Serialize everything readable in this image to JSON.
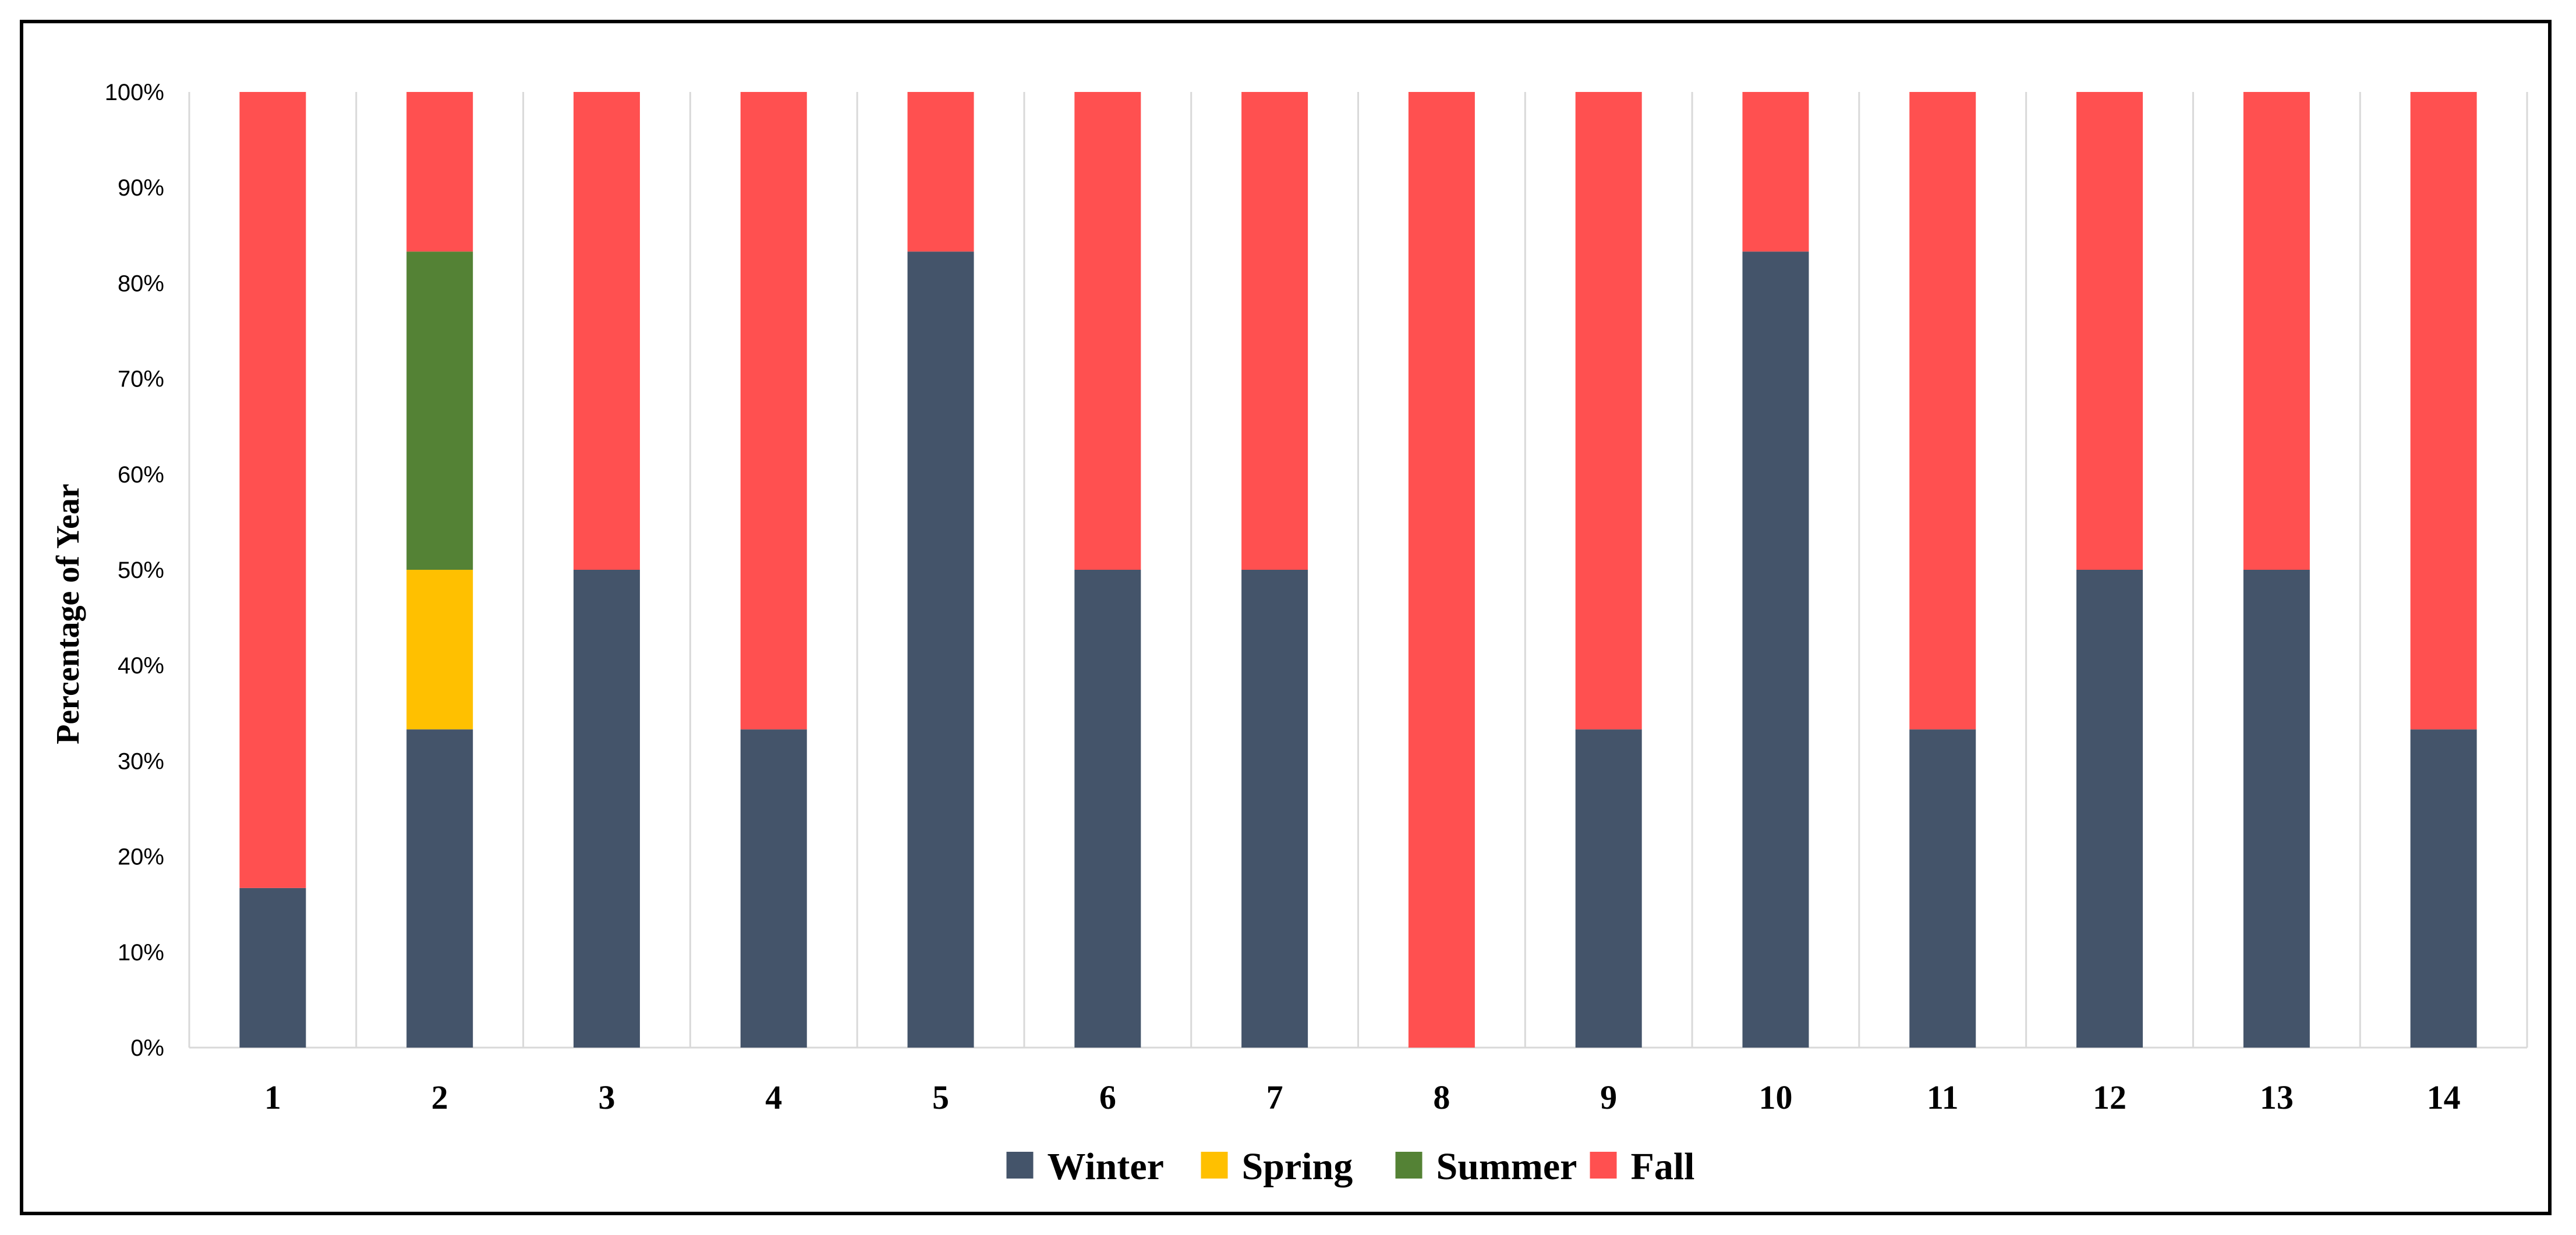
{
  "chart_data": {
    "type": "bar",
    "stacked": true,
    "percent": true,
    "title": "",
    "xlabel": "",
    "ylabel": "Percentage of Year",
    "ylim": [
      0,
      100
    ],
    "y_ticks": [
      "0%",
      "10%",
      "20%",
      "30%",
      "40%",
      "50%",
      "60%",
      "70%",
      "80%",
      "90%",
      "100%"
    ],
    "categories": [
      "1",
      "2",
      "3",
      "4",
      "5",
      "6",
      "7",
      "8",
      "9",
      "10",
      "11",
      "12",
      "13",
      "14"
    ],
    "series": [
      {
        "name": "Winter",
        "color": "#44546A",
        "values": [
          16.7,
          33.3,
          50,
          33.3,
          83.3,
          50,
          50,
          0,
          33.3,
          83.3,
          33.3,
          50,
          50,
          33.3
        ]
      },
      {
        "name": "Spring",
        "color": "#FFC000",
        "values": [
          0,
          16.7,
          0,
          0,
          0,
          0,
          0,
          0,
          0,
          0,
          0,
          0,
          0,
          0
        ]
      },
      {
        "name": "Summer",
        "color": "#548235",
        "values": [
          0,
          33.3,
          0,
          0,
          0,
          0,
          0,
          0,
          0,
          0,
          0,
          0,
          0,
          0
        ]
      },
      {
        "name": "Fall",
        "color": "#FF5050",
        "values": [
          83.3,
          16.7,
          50,
          66.7,
          16.7,
          50,
          50,
          100,
          66.7,
          16.7,
          66.7,
          50,
          50,
          66.7
        ]
      }
    ],
    "grid": "vertical-category-separators",
    "legend": "bottom-center"
  }
}
